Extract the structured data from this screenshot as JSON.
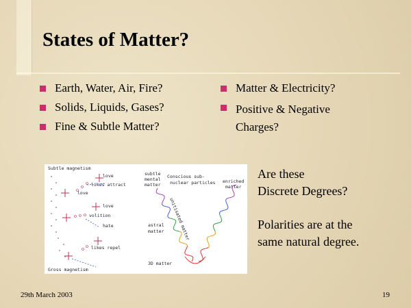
{
  "title": "States of Matter?",
  "bullets_left": [
    "Earth, Water, Air, Fire?",
    "Solids, Liquids, Gases?",
    "Fine & Subtle Matter?"
  ],
  "bullets_right": [
    "Matter & Electricity?",
    "Positive & Negative Charges?"
  ],
  "diagram": {
    "labels": [
      "Subtle magnetism",
      "love",
      "likes attract",
      "love",
      "love",
      "volition",
      "hate",
      "likes repel",
      "Gross magnetism",
      "subtle",
      "mental",
      "matter",
      "Conscious sub-",
      "nuclear particles",
      "enriched",
      "matter",
      "astral",
      "matter",
      "unitisated matter",
      "3D matter"
    ]
  },
  "side_text": [
    "Are these",
    "Discrete Degrees?",
    "Polarities are at the",
    "same natural degree."
  ],
  "footer": {
    "date": "29th March 2003",
    "page": "19"
  }
}
